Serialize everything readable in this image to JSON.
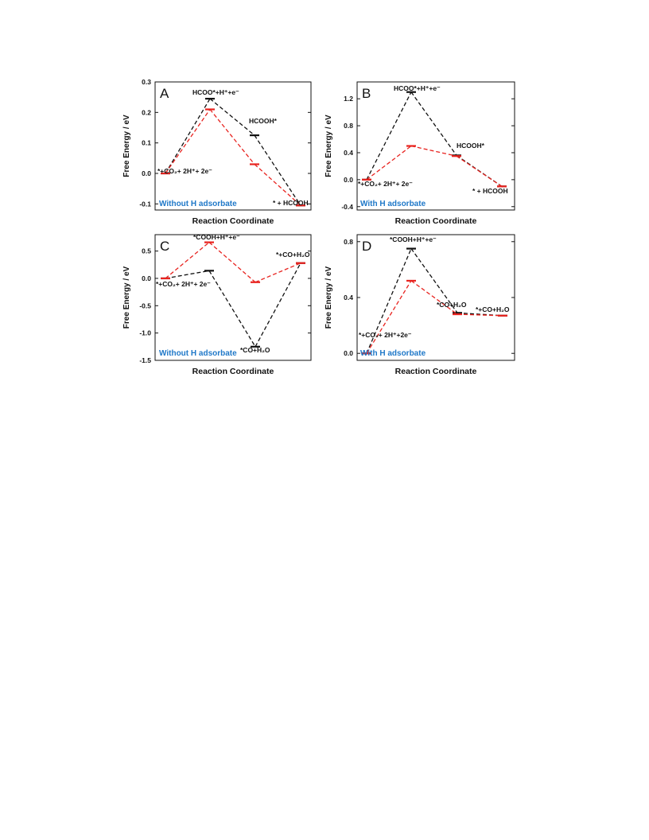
{
  "colors": {
    "black_series": "#111111",
    "red_series": "#e8231f",
    "condition_label": "#1f78c8",
    "axis": "#111111"
  },
  "chart_data": [
    {
      "panel": "A",
      "type": "line",
      "xlabel": "Reaction Coordinate",
      "ylabel": "Free Energy / eV",
      "ylim": [
        -0.12,
        0.3
      ],
      "yticks": [
        -0.1,
        0.0,
        0.1,
        0.2,
        0.3
      ],
      "ytick_labels": [
        "-0.1",
        "0.0",
        "0.1",
        "0.2",
        "0.3"
      ],
      "condition": "Without H adsorbate",
      "x": [
        1,
        2,
        3,
        4
      ],
      "series": [
        {
          "color": "black",
          "values": [
            0.0,
            0.245,
            0.125,
            -0.105
          ]
        },
        {
          "color": "red",
          "values": [
            0.0,
            0.21,
            0.03,
            -0.105
          ]
        }
      ],
      "state_labels": [
        "*+CO₂+ 2H⁺+ 2e⁻",
        "HCOO*+H⁺+e⁻",
        "HCOOH*",
        "* + HCOOH"
      ]
    },
    {
      "panel": "B",
      "type": "line",
      "xlabel": "Reaction Coordinate",
      "ylabel": "Free Energy / eV",
      "ylim": [
        -0.45,
        1.45
      ],
      "yticks": [
        -0.4,
        0.0,
        0.4,
        0.8,
        1.2
      ],
      "ytick_labels": [
        "-0.4",
        "0.0",
        "0.4",
        "0.8",
        "1.2"
      ],
      "condition": "With H adsorbate",
      "x": [
        1,
        2,
        3,
        4
      ],
      "series": [
        {
          "color": "black",
          "values": [
            0.0,
            1.3,
            0.36,
            -0.1
          ]
        },
        {
          "color": "red",
          "values": [
            0.0,
            0.5,
            0.35,
            -0.1
          ]
        }
      ],
      "state_labels": [
        "*+CO₂+ 2H⁺+ 2e⁻",
        "HCOO*+H⁺+e⁻",
        "HCOOH*",
        "* + HCOOH"
      ]
    },
    {
      "panel": "C",
      "type": "line",
      "xlabel": "Reaction Coordinate",
      "ylabel": "Free Energy / eV",
      "ylim": [
        -1.5,
        0.8
      ],
      "yticks": [
        -1.5,
        -1.0,
        -0.5,
        0.0,
        0.5
      ],
      "ytick_labels": [
        "-1.5",
        "-1.0",
        "-0.5",
        "0.0",
        "0.5"
      ],
      "condition": "Without H adsorbate",
      "x": [
        1,
        2,
        3,
        4
      ],
      "series": [
        {
          "color": "black",
          "values": [
            0.0,
            0.14,
            -1.25,
            0.28
          ]
        },
        {
          "color": "red",
          "values": [
            0.0,
            0.66,
            -0.07,
            0.28
          ]
        }
      ],
      "state_labels": [
        "*+CO₂+ 2H⁺+ 2e⁻",
        "*COOH+H⁺+e⁻",
        "*CO+H₂O",
        "*+CO+H₂O"
      ]
    },
    {
      "panel": "D",
      "type": "line",
      "xlabel": "Reaction Coordinate",
      "ylabel": "Free Energy / eV",
      "ylim": [
        -0.05,
        0.85
      ],
      "yticks": [
        0.0,
        0.4,
        0.8
      ],
      "ytick_labels": [
        "0.0",
        "0.4",
        "0.8"
      ],
      "condition": "With H adsorbate",
      "x": [
        1,
        2,
        3,
        4
      ],
      "series": [
        {
          "color": "black",
          "values": [
            0.0,
            0.75,
            0.29,
            0.27
          ]
        },
        {
          "color": "red",
          "values": [
            0.0,
            0.52,
            0.28,
            0.27
          ]
        }
      ],
      "state_labels": [
        "*+CO₂+ 2H⁺+2e⁻",
        "*COOH+H⁺+e⁻",
        "*CO+H₂O",
        "*+CO+H₂O"
      ]
    }
  ]
}
